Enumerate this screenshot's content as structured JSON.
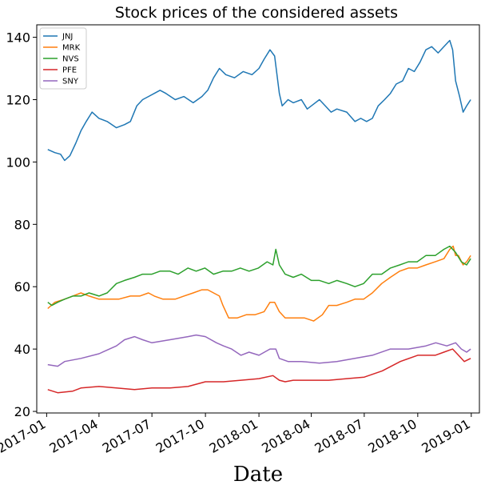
{
  "chart_data": {
    "type": "line",
    "title": "Stock prices of the considered assets",
    "xlabel": "Date",
    "ylabel": "",
    "x_range": [
      "2016-12-15",
      "2019-01-15"
    ],
    "ylim": [
      19.5,
      144
    ],
    "grid": false,
    "legend_position": "top-left",
    "x_ticks": [
      "2017-01",
      "2017-04",
      "2017-07",
      "2017-10",
      "2018-01",
      "2018-04",
      "2018-07",
      "2018-10",
      "2019-01"
    ],
    "y_ticks": [
      20,
      40,
      60,
      80,
      100,
      120,
      140
    ],
    "series": [
      {
        "name": "JNJ",
        "color": "#1f77b4",
        "points": [
          [
            "2017-01-03",
            104
          ],
          [
            "2017-01-15",
            103
          ],
          [
            "2017-01-25",
            102.5
          ],
          [
            "2017-02-01",
            100.5
          ],
          [
            "2017-02-10",
            102
          ],
          [
            "2017-02-20",
            106
          ],
          [
            "2017-03-01",
            110
          ],
          [
            "2017-03-10",
            113
          ],
          [
            "2017-03-20",
            116
          ],
          [
            "2017-04-01",
            114
          ],
          [
            "2017-04-15",
            113
          ],
          [
            "2017-05-01",
            111
          ],
          [
            "2017-05-15",
            112
          ],
          [
            "2017-05-25",
            113
          ],
          [
            "2017-06-05",
            118
          ],
          [
            "2017-06-15",
            120
          ],
          [
            "2017-06-25",
            121
          ],
          [
            "2017-07-05",
            122
          ],
          [
            "2017-07-15",
            123
          ],
          [
            "2017-07-25",
            122
          ],
          [
            "2017-08-10",
            120
          ],
          [
            "2017-08-25",
            121
          ],
          [
            "2017-09-10",
            119
          ],
          [
            "2017-09-25",
            121
          ],
          [
            "2017-10-05",
            123
          ],
          [
            "2017-10-15",
            127
          ],
          [
            "2017-10-25",
            130
          ],
          [
            "2017-11-05",
            128
          ],
          [
            "2017-11-20",
            127
          ],
          [
            "2017-12-05",
            129
          ],
          [
            "2017-12-20",
            128
          ],
          [
            "2018-01-01",
            130
          ],
          [
            "2018-01-10",
            133
          ],
          [
            "2018-01-20",
            136
          ],
          [
            "2018-01-28",
            134
          ],
          [
            "2018-02-05",
            122
          ],
          [
            "2018-02-10",
            118
          ],
          [
            "2018-02-20",
            120
          ],
          [
            "2018-03-01",
            119
          ],
          [
            "2018-03-15",
            120
          ],
          [
            "2018-03-25",
            117
          ],
          [
            "2018-04-01",
            118
          ],
          [
            "2018-04-15",
            120
          ],
          [
            "2018-04-25",
            118
          ],
          [
            "2018-05-05",
            116
          ],
          [
            "2018-05-15",
            117
          ],
          [
            "2018-06-01",
            116
          ],
          [
            "2018-06-15",
            113
          ],
          [
            "2018-06-25",
            114
          ],
          [
            "2018-07-05",
            113
          ],
          [
            "2018-07-15",
            114
          ],
          [
            "2018-07-25",
            118
          ],
          [
            "2018-08-05",
            120
          ],
          [
            "2018-08-15",
            122
          ],
          [
            "2018-08-25",
            125
          ],
          [
            "2018-09-05",
            126
          ],
          [
            "2018-09-15",
            130
          ],
          [
            "2018-09-25",
            129
          ],
          [
            "2018-10-05",
            132
          ],
          [
            "2018-10-15",
            136
          ],
          [
            "2018-10-25",
            137
          ],
          [
            "2018-11-05",
            135
          ],
          [
            "2018-11-15",
            137
          ],
          [
            "2018-11-25",
            139
          ],
          [
            "2018-11-30",
            136
          ],
          [
            "2018-12-05",
            126
          ],
          [
            "2018-12-12",
            121
          ],
          [
            "2018-12-18",
            116
          ],
          [
            "2018-12-24",
            118
          ],
          [
            "2018-12-31",
            120
          ]
        ]
      },
      {
        "name": "MRK",
        "color": "#ff7f0e",
        "points": [
          [
            "2017-01-03",
            53
          ],
          [
            "2017-01-15",
            55
          ],
          [
            "2017-02-01",
            56
          ],
          [
            "2017-02-15",
            57
          ],
          [
            "2017-03-01",
            58
          ],
          [
            "2017-03-15",
            57
          ],
          [
            "2017-04-01",
            56
          ],
          [
            "2017-04-20",
            56
          ],
          [
            "2017-05-05",
            56
          ],
          [
            "2017-05-25",
            57
          ],
          [
            "2017-06-10",
            57
          ],
          [
            "2017-06-25",
            58
          ],
          [
            "2017-07-05",
            57
          ],
          [
            "2017-07-20",
            56
          ],
          [
            "2017-08-10",
            56
          ],
          [
            "2017-08-25",
            57
          ],
          [
            "2017-09-10",
            58
          ],
          [
            "2017-09-25",
            59
          ],
          [
            "2017-10-05",
            59
          ],
          [
            "2017-10-15",
            58
          ],
          [
            "2017-10-25",
            57
          ],
          [
            "2017-10-31",
            54
          ],
          [
            "2017-11-10",
            50
          ],
          [
            "2017-11-25",
            50
          ],
          [
            "2017-12-10",
            51
          ],
          [
            "2017-12-25",
            51
          ],
          [
            "2018-01-10",
            52
          ],
          [
            "2018-01-20",
            55
          ],
          [
            "2018-01-28",
            55
          ],
          [
            "2018-02-05",
            52
          ],
          [
            "2018-02-15",
            50
          ],
          [
            "2018-03-01",
            50
          ],
          [
            "2018-03-20",
            50
          ],
          [
            "2018-04-05",
            49
          ],
          [
            "2018-04-20",
            51
          ],
          [
            "2018-05-01",
            54
          ],
          [
            "2018-05-15",
            54
          ],
          [
            "2018-06-01",
            55
          ],
          [
            "2018-06-15",
            56
          ],
          [
            "2018-06-30",
            56
          ],
          [
            "2018-07-15",
            58
          ],
          [
            "2018-07-31",
            61
          ],
          [
            "2018-08-15",
            63
          ],
          [
            "2018-08-31",
            65
          ],
          [
            "2018-09-15",
            66
          ],
          [
            "2018-09-30",
            66
          ],
          [
            "2018-10-15",
            67
          ],
          [
            "2018-10-31",
            68
          ],
          [
            "2018-11-15",
            69
          ],
          [
            "2018-11-25",
            72
          ],
          [
            "2018-12-01",
            73
          ],
          [
            "2018-12-05",
            70
          ],
          [
            "2018-12-10",
            70
          ],
          [
            "2018-12-18",
            67
          ],
          [
            "2018-12-24",
            68
          ],
          [
            "2018-12-31",
            70
          ]
        ]
      },
      {
        "name": "NVS",
        "color": "#2ca02c",
        "points": [
          [
            "2017-01-03",
            55
          ],
          [
            "2017-01-10",
            54
          ],
          [
            "2017-01-20",
            55
          ],
          [
            "2017-02-01",
            56
          ],
          [
            "2017-02-15",
            57
          ],
          [
            "2017-03-01",
            57
          ],
          [
            "2017-03-15",
            58
          ],
          [
            "2017-04-01",
            57
          ],
          [
            "2017-04-15",
            58
          ],
          [
            "2017-05-01",
            61
          ],
          [
            "2017-05-15",
            62
          ],
          [
            "2017-06-01",
            63
          ],
          [
            "2017-06-15",
            64
          ],
          [
            "2017-07-01",
            64
          ],
          [
            "2017-07-15",
            65
          ],
          [
            "2017-08-01",
            65
          ],
          [
            "2017-08-15",
            64
          ],
          [
            "2017-09-01",
            66
          ],
          [
            "2017-09-15",
            65
          ],
          [
            "2017-09-30",
            66
          ],
          [
            "2017-10-15",
            64
          ],
          [
            "2017-10-31",
            65
          ],
          [
            "2017-11-15",
            65
          ],
          [
            "2017-11-30",
            66
          ],
          [
            "2017-12-15",
            65
          ],
          [
            "2017-12-31",
            66
          ],
          [
            "2018-01-15",
            68
          ],
          [
            "2018-01-25",
            67
          ],
          [
            "2018-01-30",
            72
          ],
          [
            "2018-02-05",
            67
          ],
          [
            "2018-02-15",
            64
          ],
          [
            "2018-03-01",
            63
          ],
          [
            "2018-03-15",
            64
          ],
          [
            "2018-04-01",
            62
          ],
          [
            "2018-04-15",
            62
          ],
          [
            "2018-05-01",
            61
          ],
          [
            "2018-05-15",
            62
          ],
          [
            "2018-06-01",
            61
          ],
          [
            "2018-06-15",
            60
          ],
          [
            "2018-06-30",
            61
          ],
          [
            "2018-07-15",
            64
          ],
          [
            "2018-07-31",
            64
          ],
          [
            "2018-08-15",
            66
          ],
          [
            "2018-08-31",
            67
          ],
          [
            "2018-09-15",
            68
          ],
          [
            "2018-09-30",
            68
          ],
          [
            "2018-10-15",
            70
          ],
          [
            "2018-10-31",
            70
          ],
          [
            "2018-11-15",
            72
          ],
          [
            "2018-11-25",
            73
          ],
          [
            "2018-12-05",
            71
          ],
          [
            "2018-12-15",
            68
          ],
          [
            "2018-12-24",
            67
          ],
          [
            "2018-12-31",
            69
          ]
        ]
      },
      {
        "name": "PFE",
        "color": "#d62728",
        "points": [
          [
            "2017-01-03",
            27
          ],
          [
            "2017-01-20",
            26
          ],
          [
            "2017-02-15",
            26.5
          ],
          [
            "2017-03-01",
            27.5
          ],
          [
            "2017-04-01",
            28
          ],
          [
            "2017-05-01",
            27.5
          ],
          [
            "2017-06-01",
            27
          ],
          [
            "2017-07-01",
            27.5
          ],
          [
            "2017-08-01",
            27.5
          ],
          [
            "2017-09-01",
            28
          ],
          [
            "2017-10-01",
            29.5
          ],
          [
            "2017-11-01",
            29.5
          ],
          [
            "2017-12-01",
            30
          ],
          [
            "2018-01-01",
            30.5
          ],
          [
            "2018-01-25",
            31.5
          ],
          [
            "2018-02-05",
            30
          ],
          [
            "2018-02-15",
            29.5
          ],
          [
            "2018-03-01",
            30
          ],
          [
            "2018-04-01",
            30
          ],
          [
            "2018-05-01",
            30
          ],
          [
            "2018-06-01",
            30.5
          ],
          [
            "2018-07-01",
            31
          ],
          [
            "2018-08-01",
            33
          ],
          [
            "2018-09-01",
            36
          ],
          [
            "2018-10-01",
            38
          ],
          [
            "2018-10-31",
            38
          ],
          [
            "2018-11-15",
            39
          ],
          [
            "2018-11-30",
            40
          ],
          [
            "2018-12-10",
            38
          ],
          [
            "2018-12-20",
            36
          ],
          [
            "2018-12-31",
            37
          ]
        ]
      },
      {
        "name": "SNY",
        "color": "#9467bd",
        "points": [
          [
            "2017-01-03",
            35
          ],
          [
            "2017-01-20",
            34.5
          ],
          [
            "2017-02-01",
            36
          ],
          [
            "2017-03-01",
            37
          ],
          [
            "2017-04-01",
            38.5
          ],
          [
            "2017-05-01",
            41
          ],
          [
            "2017-05-15",
            43
          ],
          [
            "2017-06-01",
            44
          ],
          [
            "2017-06-15",
            43
          ],
          [
            "2017-07-01",
            42
          ],
          [
            "2017-08-01",
            43
          ],
          [
            "2017-09-01",
            44
          ],
          [
            "2017-09-15",
            44.5
          ],
          [
            "2017-10-01",
            44
          ],
          [
            "2017-10-20",
            42
          ],
          [
            "2017-11-01",
            41
          ],
          [
            "2017-11-15",
            40
          ],
          [
            "2017-12-01",
            38
          ],
          [
            "2017-12-15",
            39
          ],
          [
            "2018-01-01",
            38
          ],
          [
            "2018-01-20",
            40
          ],
          [
            "2018-01-30",
            40
          ],
          [
            "2018-02-05",
            37
          ],
          [
            "2018-02-20",
            36
          ],
          [
            "2018-03-15",
            36
          ],
          [
            "2018-04-15",
            35.5
          ],
          [
            "2018-05-15",
            36
          ],
          [
            "2018-06-15",
            37
          ],
          [
            "2018-07-15",
            38
          ],
          [
            "2018-08-15",
            40
          ],
          [
            "2018-09-15",
            40
          ],
          [
            "2018-10-15",
            41
          ],
          [
            "2018-11-01",
            42
          ],
          [
            "2018-11-20",
            41
          ],
          [
            "2018-12-05",
            42
          ],
          [
            "2018-12-15",
            40
          ],
          [
            "2018-12-24",
            39
          ],
          [
            "2018-12-31",
            40
          ]
        ]
      }
    ]
  }
}
